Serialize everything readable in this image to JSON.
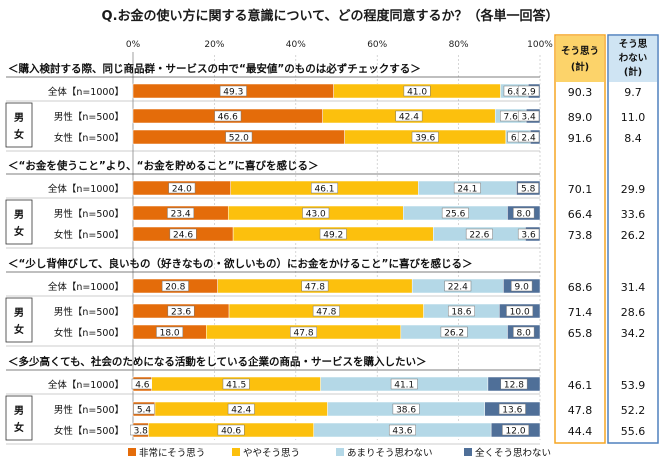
{
  "title": "Q.お金の使い方に関する意識について、どの程度同意するか？（各単一回答）",
  "chart_data": {
    "type": "bar",
    "orientation": "horizontal",
    "stacked": true,
    "xlim": [
      0,
      100
    ],
    "x_ticks": [
      "0%",
      "20%",
      "40%",
      "60%",
      "80%",
      "100%"
    ],
    "series": [
      {
        "name": "非常にそう思う",
        "color": "#e46c0a"
      },
      {
        "name": "ややそう思う",
        "color": "#fcc00d"
      },
      {
        "name": "あまりそう思わない",
        "color": "#b4d8e7"
      },
      {
        "name": "全くそう思わない",
        "color": "#4f6f98"
      }
    ],
    "summary_headers": {
      "agree": "そう思う\n(計)",
      "disagree": "そう思わない\n(計)"
    },
    "groups": [
      {
        "label": "＜購入検討する際、同じ商品群・サービスの中で“最安値”のものは必ずチェックする＞",
        "gender_label": "男女",
        "rows": [
          {
            "label": "全体【n=1000】",
            "values": [
              49.3,
              41.0,
              6.8,
              2.9
            ],
            "agree": "90.3",
            "disagree": "9.7"
          },
          {
            "label": "男性【n=500】",
            "values": [
              46.6,
              42.4,
              7.6,
              3.4
            ],
            "agree": "89.0",
            "disagree": "11.0"
          },
          {
            "label": "女性【n=500】",
            "values": [
              52.0,
              39.6,
              6.0,
              2.4
            ],
            "agree": "91.6",
            "disagree": "8.4"
          }
        ]
      },
      {
        "label": "＜“お金を使うこと”より、“お金を貯めること”に喜びを感じる＞",
        "gender_label": "男女",
        "rows": [
          {
            "label": "全体【n=1000】",
            "values": [
              24.0,
              46.1,
              24.1,
              5.8
            ],
            "agree": "70.1",
            "disagree": "29.9"
          },
          {
            "label": "男性【n=500】",
            "values": [
              23.4,
              43.0,
              25.6,
              8.0
            ],
            "agree": "66.4",
            "disagree": "33.6"
          },
          {
            "label": "女性【n=500】",
            "values": [
              24.6,
              49.2,
              22.6,
              3.6
            ],
            "agree": "73.8",
            "disagree": "26.2"
          }
        ]
      },
      {
        "label": "＜“少し背伸びして、良いもの（好きなもの・欲しいもの）にお金をかけること”に喜びを感じる＞",
        "gender_label": "男女",
        "rows": [
          {
            "label": "全体【n=1000】",
            "values": [
              20.8,
              47.8,
              22.4,
              9.0
            ],
            "agree": "68.6",
            "disagree": "31.4"
          },
          {
            "label": "男性【n=500】",
            "values": [
              23.6,
              47.8,
              18.6,
              10.0
            ],
            "agree": "71.4",
            "disagree": "28.6"
          },
          {
            "label": "女性【n=500】",
            "values": [
              18.0,
              47.8,
              26.2,
              8.0
            ],
            "agree": "65.8",
            "disagree": "34.2"
          }
        ]
      },
      {
        "label": "＜多少高くても、社会のためになる活動をしている企業の商品・サービスを購入したい＞",
        "gender_label": "男女",
        "rows": [
          {
            "label": "全体【n=1000】",
            "values": [
              4.6,
              41.5,
              41.1,
              12.8
            ],
            "agree": "46.1",
            "disagree": "53.9"
          },
          {
            "label": "男性【n=500】",
            "values": [
              5.4,
              42.4,
              38.6,
              13.6
            ],
            "agree": "47.8",
            "disagree": "52.2"
          },
          {
            "label": "女性【n=500】",
            "values": [
              3.8,
              40.6,
              43.6,
              12.0
            ],
            "agree": "44.4",
            "disagree": "55.6"
          }
        ]
      }
    ]
  }
}
